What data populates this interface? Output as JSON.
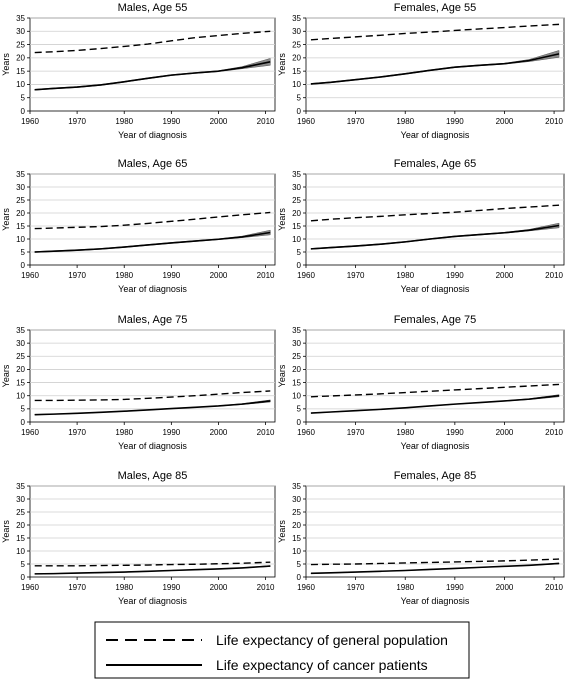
{
  "figure": {
    "legend": {
      "items": [
        {
          "label": "Life expectancy of general population",
          "style": "dashed"
        },
        {
          "label": "Life expectancy of cancer patients",
          "style": "solid"
        }
      ]
    }
  },
  "chart_data": [
    {
      "type": "line",
      "title": "Males, Age 55",
      "xlabel": "Year of diagnosis",
      "ylabel": "Years",
      "xlim": [
        1960,
        2012
      ],
      "ylim": [
        0,
        35
      ],
      "xticks": [
        1960,
        1970,
        1980,
        1990,
        2000,
        2010
      ],
      "yticks": [
        0,
        5,
        10,
        15,
        20,
        25,
        30,
        35
      ],
      "grid": true,
      "x": [
        1961,
        1965,
        1970,
        1975,
        1980,
        1985,
        1990,
        1995,
        2000,
        2005,
        2011
      ],
      "series": [
        {
          "name": "Life expectancy of general population",
          "style": "dashed",
          "values": [
            22.0,
            22.3,
            22.8,
            23.5,
            24.3,
            25.2,
            26.4,
            27.6,
            28.4,
            29.2,
            30.0
          ]
        },
        {
          "name": "Life expectancy of cancer patients",
          "style": "solid",
          "values": [
            8.0,
            8.5,
            9.0,
            9.8,
            11.0,
            12.3,
            13.5,
            14.3,
            15.0,
            16.3,
            18.5
          ],
          "band": [
            [
              7.8,
              8.2
            ],
            [
              8.3,
              8.7
            ],
            [
              8.8,
              9.2
            ],
            [
              9.6,
              10.0
            ],
            [
              10.8,
              11.2
            ],
            [
              12.1,
              12.5
            ],
            [
              13.3,
              13.7
            ],
            [
              14.1,
              14.5
            ],
            [
              14.8,
              15.2
            ],
            [
              15.9,
              16.7
            ],
            [
              17.2,
              19.8
            ]
          ]
        }
      ]
    },
    {
      "type": "line",
      "title": "Females, Age 55",
      "xlabel": "Year of diagnosis",
      "ylabel": "Years",
      "xlim": [
        1960,
        2012
      ],
      "ylim": [
        0,
        35
      ],
      "xticks": [
        1960,
        1970,
        1980,
        1990,
        2000,
        2010
      ],
      "yticks": [
        0,
        5,
        10,
        15,
        20,
        25,
        30,
        35
      ],
      "grid": true,
      "x": [
        1961,
        1965,
        1970,
        1975,
        1980,
        1985,
        1990,
        1995,
        2000,
        2005,
        2011
      ],
      "series": [
        {
          "name": "Life expectancy of general population",
          "style": "dashed",
          "values": [
            26.8,
            27.3,
            27.9,
            28.5,
            29.2,
            29.7,
            30.3,
            30.9,
            31.4,
            32.0,
            32.6
          ]
        },
        {
          "name": "Life expectancy of cancer patients",
          "style": "solid",
          "values": [
            10.2,
            10.8,
            11.8,
            12.8,
            14.0,
            15.3,
            16.5,
            17.2,
            17.8,
            19.0,
            21.5
          ],
          "band": [
            [
              10.0,
              10.4
            ],
            [
              10.6,
              11.0
            ],
            [
              11.6,
              12.0
            ],
            [
              12.6,
              13.0
            ],
            [
              13.8,
              14.2
            ],
            [
              15.1,
              15.5
            ],
            [
              16.3,
              16.7
            ],
            [
              17.0,
              17.4
            ],
            [
              17.6,
              18.0
            ],
            [
              18.6,
              19.4
            ],
            [
              20.2,
              22.8
            ]
          ]
        }
      ]
    },
    {
      "type": "line",
      "title": "Males, Age 65",
      "xlabel": "Year of diagnosis",
      "ylabel": "Years",
      "xlim": [
        1960,
        2012
      ],
      "ylim": [
        0,
        35
      ],
      "xticks": [
        1960,
        1970,
        1980,
        1990,
        2000,
        2010
      ],
      "yticks": [
        0,
        5,
        10,
        15,
        20,
        25,
        30,
        35
      ],
      "grid": true,
      "x": [
        1961,
        1965,
        1970,
        1975,
        1980,
        1985,
        1990,
        1995,
        2000,
        2005,
        2011
      ],
      "series": [
        {
          "name": "Life expectancy of general population",
          "style": "dashed",
          "values": [
            14.0,
            14.2,
            14.5,
            14.8,
            15.3,
            16.0,
            16.8,
            17.6,
            18.5,
            19.3,
            20.2
          ]
        },
        {
          "name": "Life expectancy of cancer patients",
          "style": "solid",
          "values": [
            5.0,
            5.3,
            5.7,
            6.2,
            6.9,
            7.7,
            8.5,
            9.2,
            9.9,
            10.8,
            12.5
          ],
          "band": [
            [
              4.8,
              5.2
            ],
            [
              5.1,
              5.5
            ],
            [
              5.5,
              5.9
            ],
            [
              6.0,
              6.4
            ],
            [
              6.7,
              7.1
            ],
            [
              7.5,
              7.9
            ],
            [
              8.3,
              8.7
            ],
            [
              9.0,
              9.4
            ],
            [
              9.7,
              10.1
            ],
            [
              10.5,
              11.1
            ],
            [
              11.6,
              13.4
            ]
          ]
        }
      ]
    },
    {
      "type": "line",
      "title": "Females, Age 65",
      "xlabel": "Year of diagnosis",
      "ylabel": "Years",
      "xlim": [
        1960,
        2012
      ],
      "ylim": [
        0,
        35
      ],
      "xticks": [
        1960,
        1970,
        1980,
        1990,
        2000,
        2010
      ],
      "yticks": [
        0,
        5,
        10,
        15,
        20,
        25,
        30,
        35
      ],
      "grid": true,
      "x": [
        1961,
        1965,
        1970,
        1975,
        1980,
        1985,
        1990,
        1995,
        2000,
        2005,
        2011
      ],
      "series": [
        {
          "name": "Life expectancy of general population",
          "style": "dashed",
          "values": [
            17.0,
            17.6,
            18.2,
            18.7,
            19.3,
            19.8,
            20.3,
            21.0,
            21.7,
            22.3,
            23.0
          ]
        },
        {
          "name": "Life expectancy of cancer patients",
          "style": "solid",
          "values": [
            6.2,
            6.7,
            7.3,
            8.0,
            8.9,
            10.0,
            11.0,
            11.7,
            12.4,
            13.4,
            15.2
          ],
          "band": [
            [
              6.0,
              6.4
            ],
            [
              6.5,
              6.9
            ],
            [
              7.1,
              7.5
            ],
            [
              7.8,
              8.2
            ],
            [
              8.7,
              9.1
            ],
            [
              9.8,
              10.2
            ],
            [
              10.8,
              11.2
            ],
            [
              11.5,
              11.9
            ],
            [
              12.2,
              12.6
            ],
            [
              13.1,
              13.7
            ],
            [
              14.3,
              16.1
            ]
          ]
        }
      ]
    },
    {
      "type": "line",
      "title": "Males, Age 75",
      "xlabel": "Year of diagnosis",
      "ylabel": "Years",
      "xlim": [
        1960,
        2012
      ],
      "ylim": [
        0,
        35
      ],
      "xticks": [
        1960,
        1970,
        1980,
        1990,
        2000,
        2010
      ],
      "yticks": [
        0,
        5,
        10,
        15,
        20,
        25,
        30,
        35
      ],
      "grid": true,
      "x": [
        1961,
        1965,
        1970,
        1975,
        1980,
        1985,
        1990,
        1995,
        2000,
        2005,
        2011
      ],
      "series": [
        {
          "name": "Life expectancy of general population",
          "style": "dashed",
          "values": [
            8.2,
            8.2,
            8.3,
            8.4,
            8.6,
            9.0,
            9.5,
            10.0,
            10.6,
            11.2,
            11.8
          ]
        },
        {
          "name": "Life expectancy of cancer patients",
          "style": "solid",
          "values": [
            2.8,
            3.0,
            3.3,
            3.7,
            4.1,
            4.6,
            5.1,
            5.6,
            6.1,
            6.8,
            8.0
          ],
          "band": [
            [
              2.7,
              2.9
            ],
            [
              2.9,
              3.1
            ],
            [
              3.2,
              3.4
            ],
            [
              3.6,
              3.8
            ],
            [
              4.0,
              4.2
            ],
            [
              4.5,
              4.7
            ],
            [
              5.0,
              5.2
            ],
            [
              5.5,
              5.7
            ],
            [
              6.0,
              6.2
            ],
            [
              6.6,
              7.0
            ],
            [
              7.6,
              8.4
            ]
          ]
        }
      ]
    },
    {
      "type": "line",
      "title": "Females, Age 75",
      "xlabel": "Year of diagnosis",
      "ylabel": "Years",
      "xlim": [
        1960,
        2012
      ],
      "ylim": [
        0,
        35
      ],
      "xticks": [
        1960,
        1970,
        1980,
        1990,
        2000,
        2010
      ],
      "yticks": [
        0,
        5,
        10,
        15,
        20,
        25,
        30,
        35
      ],
      "grid": true,
      "x": [
        1961,
        1965,
        1970,
        1975,
        1980,
        1985,
        1990,
        1995,
        2000,
        2005,
        2011
      ],
      "series": [
        {
          "name": "Life expectancy of general population",
          "style": "dashed",
          "values": [
            9.6,
            9.9,
            10.3,
            10.7,
            11.2,
            11.7,
            12.2,
            12.7,
            13.2,
            13.7,
            14.3
          ]
        },
        {
          "name": "Life expectancy of cancer patients",
          "style": "solid",
          "values": [
            3.4,
            3.8,
            4.3,
            4.8,
            5.4,
            6.1,
            6.8,
            7.4,
            8.0,
            8.7,
            10.0
          ],
          "band": [
            [
              3.3,
              3.5
            ],
            [
              3.7,
              3.9
            ],
            [
              4.2,
              4.4
            ],
            [
              4.7,
              4.9
            ],
            [
              5.3,
              5.5
            ],
            [
              6.0,
              6.2
            ],
            [
              6.7,
              6.9
            ],
            [
              7.3,
              7.5
            ],
            [
              7.9,
              8.1
            ],
            [
              8.5,
              8.9
            ],
            [
              9.6,
              10.4
            ]
          ]
        }
      ]
    },
    {
      "type": "line",
      "title": "Males, Age 85",
      "xlabel": "Year of diagnosis",
      "ylabel": "Years",
      "xlim": [
        1960,
        2012
      ],
      "ylim": [
        0,
        35
      ],
      "xticks": [
        1960,
        1970,
        1980,
        1990,
        2000,
        2010
      ],
      "yticks": [
        0,
        5,
        10,
        15,
        20,
        25,
        30,
        35
      ],
      "grid": true,
      "x": [
        1961,
        1965,
        1970,
        1975,
        1980,
        1985,
        1990,
        1995,
        2000,
        2005,
        2011
      ],
      "series": [
        {
          "name": "Life expectancy of general population",
          "style": "dashed",
          "values": [
            4.3,
            4.3,
            4.3,
            4.4,
            4.5,
            4.6,
            4.8,
            4.9,
            5.1,
            5.3,
            5.7
          ]
        },
        {
          "name": "Life expectancy of cancer patients",
          "style": "solid",
          "values": [
            1.2,
            1.3,
            1.5,
            1.7,
            1.9,
            2.2,
            2.5,
            2.8,
            3.1,
            3.5,
            4.2
          ],
          "band": [
            [
              1.1,
              1.3
            ],
            [
              1.2,
              1.4
            ],
            [
              1.4,
              1.6
            ],
            [
              1.6,
              1.8
            ],
            [
              1.8,
              2.0
            ],
            [
              2.1,
              2.3
            ],
            [
              2.4,
              2.6
            ],
            [
              2.7,
              2.9
            ],
            [
              3.0,
              3.2
            ],
            [
              3.4,
              3.6
            ],
            [
              4.0,
              4.4
            ]
          ]
        }
      ]
    },
    {
      "type": "line",
      "title": "Females, Age 85",
      "xlabel": "Year of diagnosis",
      "ylabel": "Years",
      "xlim": [
        1960,
        2012
      ],
      "ylim": [
        0,
        35
      ],
      "xticks": [
        1960,
        1970,
        1980,
        1990,
        2000,
        2010
      ],
      "yticks": [
        0,
        5,
        10,
        15,
        20,
        25,
        30,
        35
      ],
      "grid": true,
      "x": [
        1961,
        1965,
        1970,
        1975,
        1980,
        1985,
        1990,
        1995,
        2000,
        2005,
        2011
      ],
      "series": [
        {
          "name": "Life expectancy of general population",
          "style": "dashed",
          "values": [
            4.8,
            4.9,
            5.0,
            5.2,
            5.4,
            5.6,
            5.8,
            6.0,
            6.2,
            6.5,
            6.9
          ]
        },
        {
          "name": "Life expectancy of cancer patients",
          "style": "solid",
          "values": [
            1.4,
            1.6,
            1.9,
            2.2,
            2.5,
            2.9,
            3.3,
            3.7,
            4.1,
            4.5,
            5.2
          ],
          "band": [
            [
              1.3,
              1.5
            ],
            [
              1.5,
              1.7
            ],
            [
              1.8,
              2.0
            ],
            [
              2.1,
              2.3
            ],
            [
              2.4,
              2.6
            ],
            [
              2.8,
              3.0
            ],
            [
              3.2,
              3.4
            ],
            [
              3.6,
              3.8
            ],
            [
              4.0,
              4.2
            ],
            [
              4.4,
              4.6
            ],
            [
              5.0,
              5.4
            ]
          ]
        }
      ]
    }
  ]
}
